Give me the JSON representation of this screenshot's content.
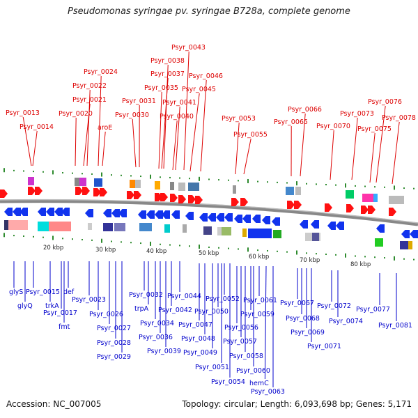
{
  "title": "Pseudomonas syringae pv. syringae B728a, complete genome",
  "footer": {
    "accession": "Accession: NC_007005",
    "topology": "Topology: circular; Length: 6,093,698 bp; Genes: 5,171"
  },
  "scale_ticks": [
    "20 kbp",
    "30 kbp",
    "40 kbp",
    "50 kbp",
    "60 kbp",
    "70 kbp",
    "80 kbp"
  ],
  "top_labels": [
    "Psyr_0013",
    "Psyr_0014",
    "Psyr_0020",
    "Psyr_0021",
    "Psyr_0022",
    "Psyr_0024",
    "aroE",
    "Psyr_0030",
    "Psyr_0031",
    "Psyr_0035",
    "Psyr_0037",
    "Psyr_0038",
    "Psyr_0040",
    "Psyr_0041",
    "Psyr_0043",
    "Psyr_0045",
    "Psyr_0046",
    "Psyr_0053",
    "Psyr_0055",
    "Psyr_0065",
    "Psyr_0066",
    "Psyr_0070",
    "Psyr_0073",
    "Psyr_0075",
    "Psyr_0076",
    "Psyr_0078"
  ],
  "bottom_labels": [
    "glyS",
    "glyQ",
    "Psyr_0015",
    "trkA",
    "Psyr_0017",
    "def",
    "fmt",
    "Psyr_0023",
    "Psyr_0026",
    "Psyr_0027",
    "Psyr_0028",
    "Psyr_0029",
    "Psyr_0032",
    "trpA",
    "Psyr_0034",
    "Psyr_0036",
    "Psyr_0039",
    "Psyr_0042",
    "Psyr_0044",
    "Psyr_0047",
    "Psyr_0048",
    "Psyr_0049",
    "Psyr_0050",
    "Psyr_0051",
    "Psyr_0052",
    "Psyr_0054",
    "Psyr_0056",
    "Psyr_0057",
    "Psyr_0058",
    "Psyr_0059",
    "Psyr_0060",
    "Psyr_0061",
    "hemC",
    "Psyr_0063",
    "Psyr_0067",
    "Psyr_0068",
    "Psyr_0069",
    "Psyr_0071",
    "Psyr_0072",
    "Psyr_0074",
    "Psyr_0077",
    "Psyr_0081"
  ],
  "colors": {
    "top_label": "#dd0000",
    "bottom_label": "#0000cc",
    "forward_gene": "#ff1111",
    "reverse_gene": "#1133ee",
    "backbone": "#777777",
    "tick": "#2e8b2e"
  }
}
